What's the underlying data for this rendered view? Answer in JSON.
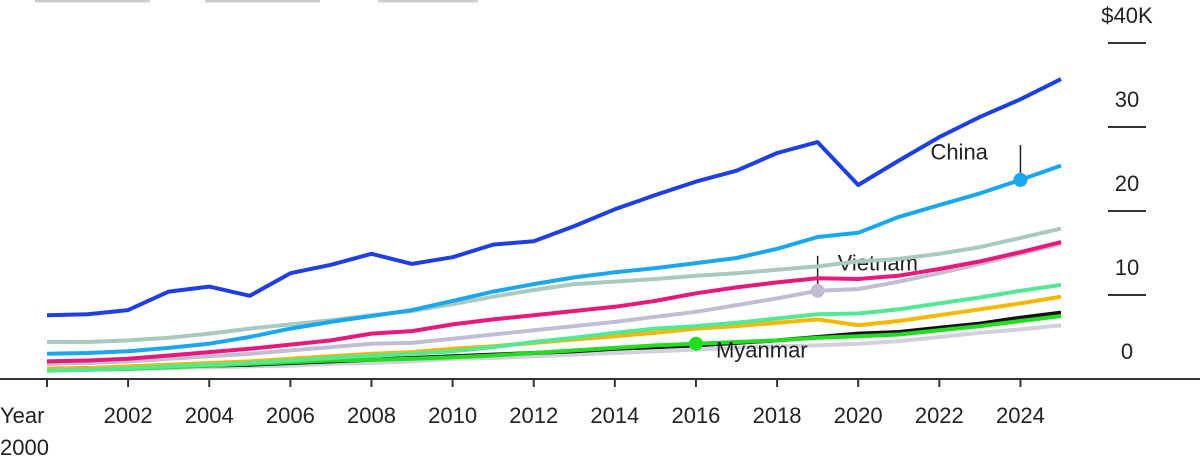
{
  "chart_data": {
    "type": "line",
    "x": [
      2000,
      2001,
      2002,
      2003,
      2004,
      2005,
      2006,
      2007,
      2008,
      2009,
      2010,
      2011,
      2012,
      2013,
      2014,
      2015,
      2016,
      2017,
      2018,
      2019,
      2020,
      2021,
      2022,
      2023,
      2024,
      2025
    ],
    "xlim": [
      2000,
      2025
    ],
    "xticks": [
      {
        "value": 2000,
        "label": "Year 2000"
      },
      2002,
      2004,
      2006,
      2008,
      2010,
      2012,
      2014,
      2016,
      2018,
      2020,
      2022,
      2024
    ],
    "ylim": [
      0,
      40
    ],
    "yticks": [
      0,
      10,
      20,
      30,
      {
        "value": 40,
        "label": "$40K"
      }
    ],
    "series": [
      {
        "color": "#d2d0dc",
        "values": [
          1.0,
          1.1,
          1.2,
          1.3,
          1.4,
          1.5,
          1.6,
          1.8,
          1.9,
          2.1,
          2.4,
          2.5,
          2.7,
          2.9,
          3.1,
          3.3,
          3.5,
          3.7,
          3.9,
          4.0,
          4.2,
          4.5,
          5.0,
          5.5,
          5.9,
          6.4
        ]
      },
      {
        "color": "#111111",
        "values": [
          1.2,
          1.3,
          1.4,
          1.5,
          1.6,
          1.7,
          1.9,
          2.1,
          2.3,
          2.5,
          2.7,
          2.9,
          3.1,
          3.3,
          3.6,
          3.8,
          4.0,
          4.3,
          4.6,
          5.0,
          5.4,
          5.6,
          6.1,
          6.6,
          7.3,
          7.9
        ]
      },
      {
        "name": "Myanmar",
        "color": "#22dd22",
        "label_x": 2016,
        "values": [
          1.0,
          1.1,
          1.2,
          1.4,
          1.6,
          1.8,
          2.0,
          2.2,
          2.3,
          2.4,
          2.6,
          2.8,
          3.1,
          3.4,
          3.7,
          4.0,
          4.2,
          4.4,
          4.6,
          4.9,
          5.1,
          5.3,
          5.8,
          6.3,
          6.9,
          7.5
        ]
      },
      {
        "color": "#f5b800",
        "values": [
          1.2,
          1.3,
          1.5,
          1.7,
          1.9,
          2.1,
          2.4,
          2.7,
          3.0,
          3.2,
          3.6,
          3.9,
          4.3,
          4.7,
          5.1,
          5.5,
          6.0,
          6.3,
          6.7,
          7.1,
          6.4,
          6.9,
          7.6,
          8.3,
          9.0,
          9.8
        ]
      },
      {
        "color": "#52e894",
        "values": [
          1.0,
          1.1,
          1.3,
          1.5,
          1.7,
          1.9,
          2.2,
          2.5,
          2.8,
          3.0,
          3.3,
          3.8,
          4.4,
          4.9,
          5.5,
          6.0,
          6.3,
          6.7,
          7.2,
          7.7,
          7.8,
          8.3,
          9.0,
          9.7,
          10.5,
          11.2
        ]
      },
      {
        "name": "Vietnam",
        "color": "#c4bcd4",
        "label_x": 2019,
        "values": [
          1.8,
          1.9,
          2.1,
          2.4,
          2.7,
          3.0,
          3.4,
          3.8,
          4.2,
          4.3,
          4.8,
          5.3,
          5.8,
          6.3,
          6.8,
          7.4,
          8.0,
          8.8,
          9.6,
          10.5,
          10.7,
          11.6,
          12.6,
          13.7,
          14.9,
          16.1
        ]
      },
      {
        "color": "#e8197a",
        "values": [
          2.1,
          2.2,
          2.4,
          2.8,
          3.2,
          3.6,
          4.1,
          4.6,
          5.4,
          5.7,
          6.5,
          7.1,
          7.6,
          8.1,
          8.6,
          9.3,
          10.2,
          10.9,
          11.5,
          12.0,
          11.9,
          12.3,
          13.1,
          14.0,
          15.1,
          16.3
        ]
      },
      {
        "color": "#a9c9c1",
        "values": [
          4.4,
          4.4,
          4.6,
          4.9,
          5.4,
          6.0,
          6.5,
          7.0,
          7.6,
          8.1,
          8.9,
          9.8,
          10.6,
          11.3,
          11.6,
          11.9,
          12.3,
          12.6,
          13.0,
          13.4,
          14.0,
          14.3,
          14.9,
          15.7,
          16.8,
          17.9
        ]
      },
      {
        "name": "China",
        "color": "#1aa7f0",
        "label_x": 2024,
        "values": [
          3.0,
          3.1,
          3.3,
          3.7,
          4.2,
          5.0,
          6.0,
          6.8,
          7.5,
          8.2,
          9.3,
          10.4,
          11.3,
          12.1,
          12.7,
          13.2,
          13.8,
          14.4,
          15.5,
          16.9,
          17.4,
          19.3,
          20.7,
          22.1,
          23.7,
          25.4
        ]
      },
      {
        "color": "#1f3fe6",
        "values": [
          7.6,
          7.7,
          8.2,
          10.4,
          11.0,
          9.9,
          12.6,
          13.6,
          14.9,
          13.7,
          14.5,
          16.0,
          16.4,
          18.2,
          20.2,
          21.9,
          23.5,
          24.8,
          26.9,
          28.2,
          23.1,
          26.0,
          28.8,
          31.2,
          33.3,
          35.7
        ]
      }
    ]
  }
}
